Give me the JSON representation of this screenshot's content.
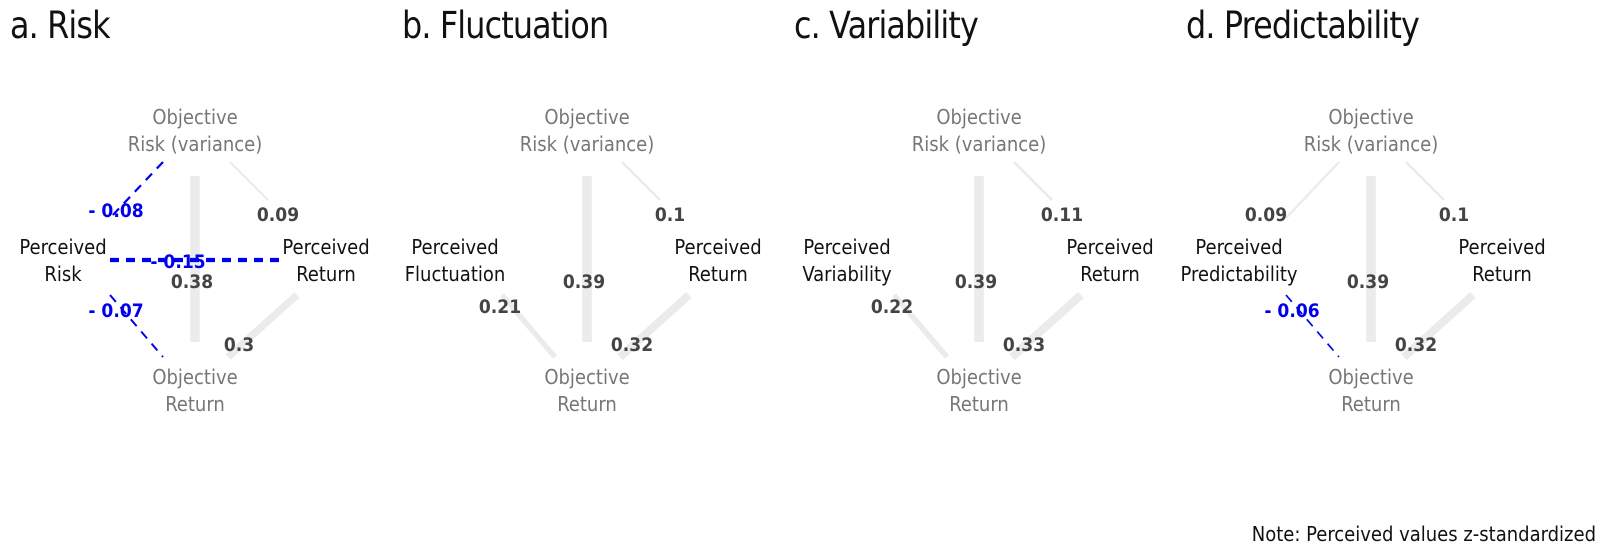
{
  "panels": [
    {
      "title": "a. Risk",
      "node_labels": {
        "obj_risk": [
          "Objective",
          "Risk (variance)"
        ],
        "obj_return": [
          "Objective",
          "Return"
        ],
        "perc_var": [
          "Perceived",
          "Risk"
        ],
        "perc_return": [
          "Perceived",
          "Return"
        ]
      },
      "coefficients": {
        "objrisk_percvar": "- 0.08",
        "objrisk_percreturn": "0.09",
        "objrisk_objreturn": "0.38",
        "percvar_percreturn": "- 0.15",
        "percvar_objreturn": "- 0.07",
        "objreturn_percreturn": "0.3"
      }
    },
    {
      "title": "b. Fluctuation",
      "node_labels": {
        "obj_risk": [
          "Objective",
          "Risk (variance)"
        ],
        "obj_return": [
          "Objective",
          "Return"
        ],
        "perc_var": [
          "Perceived",
          "Fluctuation"
        ],
        "perc_return": [
          "Perceived",
          "Return"
        ]
      },
      "coefficients": {
        "objrisk_percreturn": "0.1",
        "objrisk_objreturn": "0.39",
        "percvar_objreturn": "0.21",
        "objreturn_percreturn": "0.32"
      }
    },
    {
      "title": "c. Variability",
      "node_labels": {
        "obj_risk": [
          "Objective",
          "Risk (variance)"
        ],
        "obj_return": [
          "Objective",
          "Return"
        ],
        "perc_var": [
          "Perceived",
          "Variability"
        ],
        "perc_return": [
          "Perceived",
          "Return"
        ]
      },
      "coefficients": {
        "objrisk_percreturn": "0.11",
        "objrisk_objreturn": "0.39",
        "percvar_objreturn": "0.22",
        "objreturn_percreturn": "0.33"
      }
    },
    {
      "title": "d. Predictability",
      "node_labels": {
        "obj_risk": [
          "Objective",
          "Risk (variance)"
        ],
        "obj_return": [
          "Objective",
          "Return"
        ],
        "perc_var": [
          "Perceived",
          "Predictability"
        ],
        "perc_return": [
          "Perceived",
          "Return"
        ]
      },
      "coefficients": {
        "objrisk_percvar": "0.09",
        "objrisk_percreturn": "0.1",
        "objrisk_objreturn": "0.39",
        "percvar_objreturn": "- 0.06",
        "objreturn_percreturn": "0.32"
      }
    }
  ],
  "note": "Note: Perceived values z-standardized"
}
